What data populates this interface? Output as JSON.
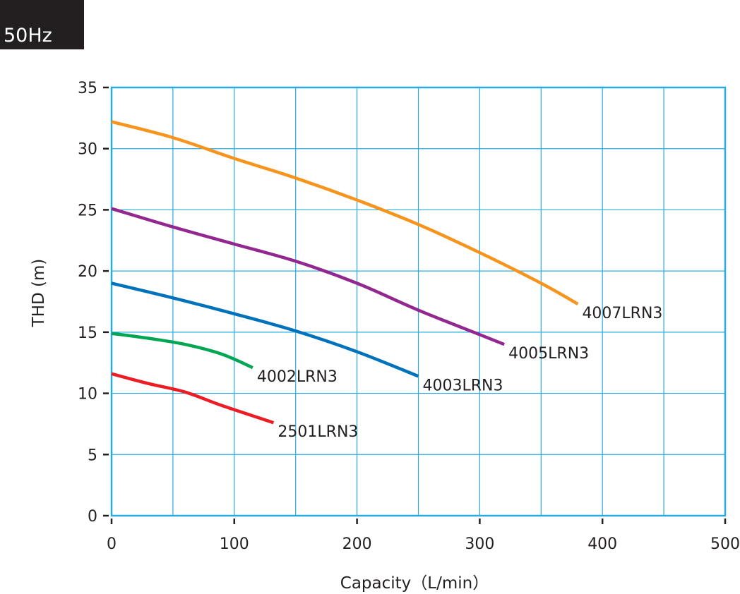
{
  "badge": {
    "text": "50Hz",
    "background": "#231f20"
  },
  "chart_data": {
    "type": "line",
    "xlabel": "Capacity（L/min）",
    "ylabel": "THD (m)",
    "xlim": [
      0,
      500
    ],
    "ylim": [
      0,
      35
    ],
    "xticks": [
      0,
      100,
      200,
      300,
      400,
      500
    ],
    "yticks": [
      0,
      5,
      10,
      15,
      20,
      25,
      30,
      35
    ],
    "x_grid_step": 50,
    "y_grid_step": 5,
    "grid": true,
    "grid_color": "#29abe2",
    "series": [
      {
        "name": "4007LRN3",
        "color": "#f7941d",
        "points": [
          [
            0,
            32.2
          ],
          [
            50,
            30.9
          ],
          [
            100,
            29.2
          ],
          [
            150,
            27.6
          ],
          [
            200,
            25.8
          ],
          [
            250,
            23.8
          ],
          [
            300,
            21.5
          ],
          [
            350,
            19.0
          ],
          [
            380,
            17.3
          ]
        ]
      },
      {
        "name": "4005LRN3",
        "color": "#92278f",
        "points": [
          [
            0,
            25.1
          ],
          [
            50,
            23.6
          ],
          [
            100,
            22.2
          ],
          [
            150,
            20.8
          ],
          [
            200,
            19.0
          ],
          [
            250,
            16.8
          ],
          [
            300,
            14.8
          ],
          [
            320,
            14.0
          ]
        ]
      },
      {
        "name": "4003LRN3",
        "color": "#0072bc",
        "points": [
          [
            0,
            19.0
          ],
          [
            50,
            17.8
          ],
          [
            100,
            16.5
          ],
          [
            150,
            15.1
          ],
          [
            200,
            13.4
          ],
          [
            250,
            11.4
          ]
        ]
      },
      {
        "name": "4002LRN3",
        "color": "#00a651",
        "points": [
          [
            0,
            14.9
          ],
          [
            30,
            14.5
          ],
          [
            60,
            14.0
          ],
          [
            90,
            13.2
          ],
          [
            115,
            12.1
          ]
        ]
      },
      {
        "name": "2501LRN3",
        "color": "#ed1c24",
        "points": [
          [
            0,
            11.6
          ],
          [
            30,
            10.8
          ],
          [
            60,
            10.1
          ],
          [
            90,
            9.0
          ],
          [
            132,
            7.6
          ]
        ]
      }
    ]
  }
}
